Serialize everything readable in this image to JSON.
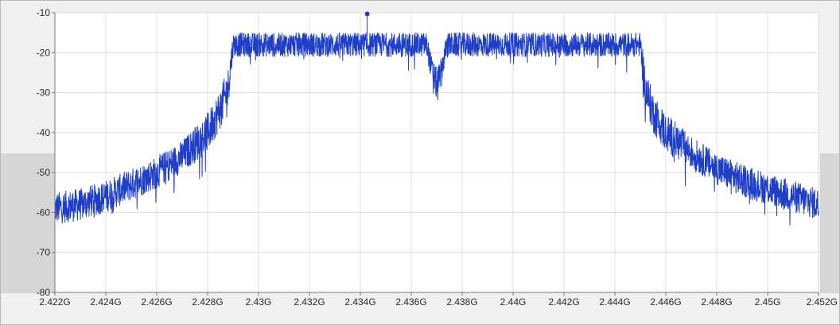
{
  "chart_data": {
    "type": "line",
    "title": "",
    "xlabel": "",
    "ylabel": "",
    "xlim": [
      2422000000.0,
      2452000000.0
    ],
    "ylim": [
      -80,
      -10
    ],
    "grid": true,
    "x_ticks": [
      {
        "value": 2422000000.0,
        "label": "2.422G"
      },
      {
        "value": 2424000000.0,
        "label": "2.424G"
      },
      {
        "value": 2426000000.0,
        "label": "2.426G"
      },
      {
        "value": 2428000000.0,
        "label": "2.428G"
      },
      {
        "value": 2430000000.0,
        "label": "2.43G"
      },
      {
        "value": 2432000000.0,
        "label": "2.432G"
      },
      {
        "value": 2434000000.0,
        "label": "2.434G"
      },
      {
        "value": 2436000000.0,
        "label": "2.436G"
      },
      {
        "value": 2438000000.0,
        "label": "2.438G"
      },
      {
        "value": 2440000000.0,
        "label": "2.44G"
      },
      {
        "value": 2442000000.0,
        "label": "2.442G"
      },
      {
        "value": 2444000000.0,
        "label": "2.444G"
      },
      {
        "value": 2446000000.0,
        "label": "2.446G"
      },
      {
        "value": 2448000000.0,
        "label": "2.448G"
      },
      {
        "value": 2450000000.0,
        "label": "2.45G"
      },
      {
        "value": 2452000000.0,
        "label": "2.452G"
      }
    ],
    "y_ticks": [
      {
        "value": -10,
        "label": "-10"
      },
      {
        "value": -20,
        "label": "-20"
      },
      {
        "value": -30,
        "label": "-30"
      },
      {
        "value": -40,
        "label": "-40"
      },
      {
        "value": -50,
        "label": "-50"
      },
      {
        "value": -60,
        "label": "-60"
      },
      {
        "value": -70,
        "label": "-70"
      },
      {
        "value": -80,
        "label": "-80"
      }
    ],
    "series": [
      {
        "color": "#1f3fc8",
        "envelope": [
          {
            "x": 2422000000.0,
            "center": -59,
            "spread": 4
          },
          {
            "x": 2423000000.0,
            "center": -58,
            "spread": 4
          },
          {
            "x": 2424000000.0,
            "center": -56,
            "spread": 4
          },
          {
            "x": 2425000000.0,
            "center": -53,
            "spread": 4
          },
          {
            "x": 2426000000.0,
            "center": -50,
            "spread": 4
          },
          {
            "x": 2427000000.0,
            "center": -46,
            "spread": 4
          },
          {
            "x": 2428000000.0,
            "center": -40,
            "spread": 5
          },
          {
            "x": 2428500000.0,
            "center": -34,
            "spread": 5
          },
          {
            "x": 2428800000.0,
            "center": -29,
            "spread": 5
          },
          {
            "x": 2429000000.0,
            "center": -18,
            "spread": 3
          },
          {
            "x": 2430000000.0,
            "center": -18,
            "spread": 3
          },
          {
            "x": 2432000000.0,
            "center": -18,
            "spread": 3
          },
          {
            "x": 2434000000.0,
            "center": -18,
            "spread": 3
          },
          {
            "x": 2436600000.0,
            "center": -18,
            "spread": 3
          },
          {
            "x": 2436800000.0,
            "center": -24,
            "spread": 3
          },
          {
            "x": 2437000000.0,
            "center": -28,
            "spread": 4
          },
          {
            "x": 2437200000.0,
            "center": -24,
            "spread": 3
          },
          {
            "x": 2437400000.0,
            "center": -18,
            "spread": 3
          },
          {
            "x": 2440000000.0,
            "center": -18,
            "spread": 3
          },
          {
            "x": 2442000000.0,
            "center": -18,
            "spread": 3
          },
          {
            "x": 2445000000.0,
            "center": -18,
            "spread": 3
          },
          {
            "x": 2445200000.0,
            "center": -29,
            "spread": 5
          },
          {
            "x": 2445500000.0,
            "center": -35,
            "spread": 5
          },
          {
            "x": 2446000000.0,
            "center": -40,
            "spread": 5
          },
          {
            "x": 2447000000.0,
            "center": -45,
            "spread": 4
          },
          {
            "x": 2448000000.0,
            "center": -49,
            "spread": 4
          },
          {
            "x": 2449000000.0,
            "center": -52,
            "spread": 4
          },
          {
            "x": 2450000000.0,
            "center": -54,
            "spread": 4
          },
          {
            "x": 2451000000.0,
            "center": -56,
            "spread": 4
          },
          {
            "x": 2452000000.0,
            "center": -58,
            "spread": 4
          }
        ]
      }
    ],
    "annotations": [
      {
        "type": "peak-marker",
        "x": 2434270000.0,
        "y": -10.3
      }
    ]
  }
}
